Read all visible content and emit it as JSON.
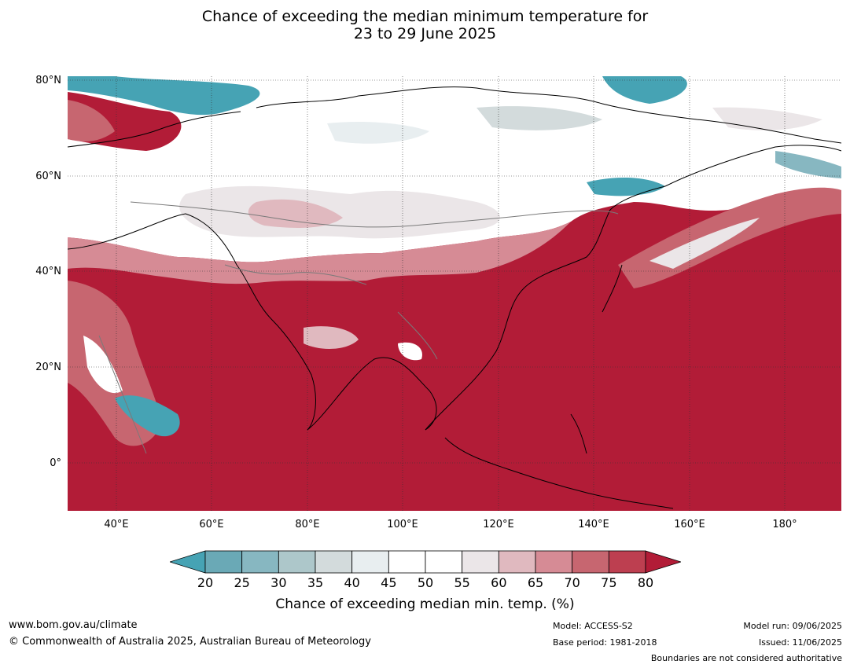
{
  "title": {
    "line1": "Chance of exceeding the median minimum temperature for",
    "line2": "23 to 29 June 2025"
  },
  "map": {
    "lat_labels": [
      "80°N",
      "60°N",
      "40°N",
      "20°N",
      "0°"
    ],
    "lon_labels": [
      "40°E",
      "60°E",
      "80°E",
      "100°E",
      "120°E",
      "140°E",
      "160°E",
      "180°"
    ],
    "colors": {
      "high": "#b21c37",
      "low": "#46a3b4",
      "neutral": "#ffffff"
    }
  },
  "colorbar": {
    "ticks": [
      "20",
      "25",
      "30",
      "35",
      "40",
      "45",
      "50",
      "55",
      "60",
      "65",
      "70",
      "75",
      "80"
    ],
    "colors": [
      "#46a3b4",
      "#6aa9b6",
      "#87b7c1",
      "#adc7ca",
      "#d3dbdc",
      "#e8eef0",
      "#ffffff",
      "#ffffff",
      "#ebe6e8",
      "#e0b9bf",
      "#d68b95",
      "#c76670",
      "#bd3f50",
      "#b21c37"
    ],
    "label": "Chance of exceeding median min. temp. (%)"
  },
  "footer": {
    "url": "www.bom.gov.au/climate",
    "copyright": "© Commonwealth of Australia 2025, Australian Bureau of Meteorology",
    "model": "Model: ACCESS-S2",
    "base_period": "Base period: 1981-2018",
    "model_run": "Model run: 09/06/2025",
    "issued": "Issued: 11/06/2025",
    "boundaries": "Boundaries are not considered authoritative"
  }
}
